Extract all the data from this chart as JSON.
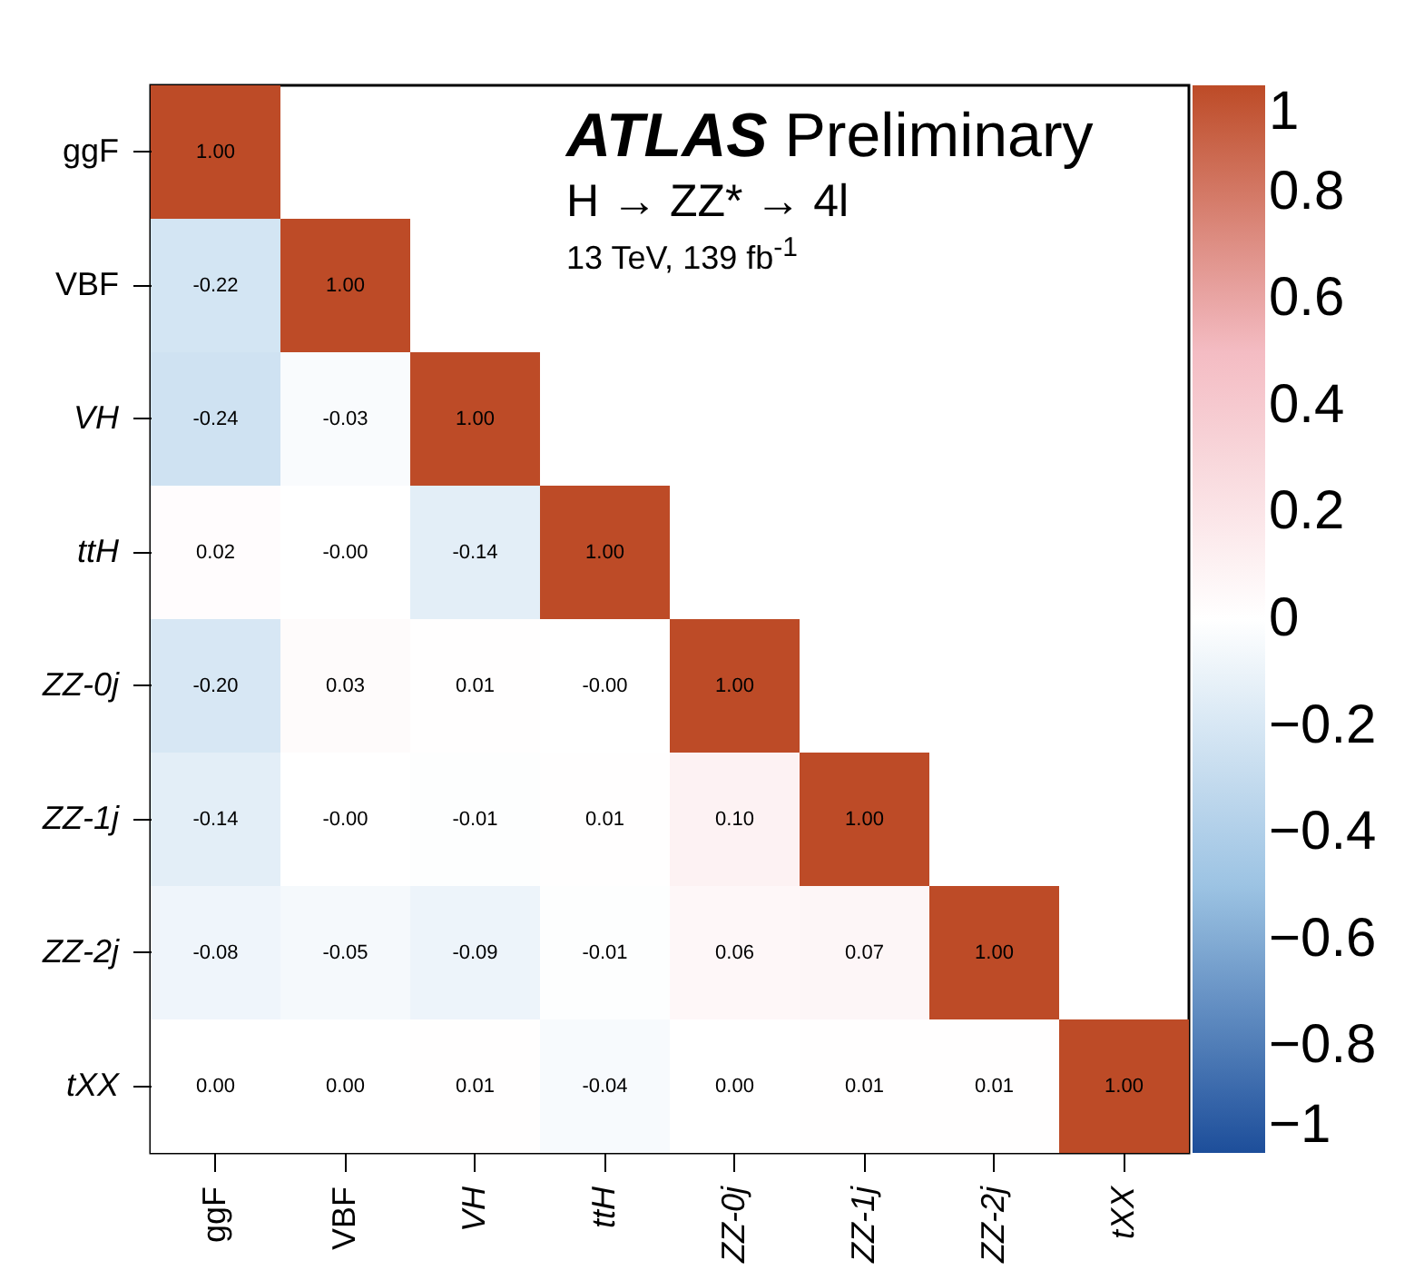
{
  "chart_data": {
    "type": "heatmap",
    "categories": [
      "ggF",
      "VBF",
      "VH",
      "ttH",
      "ZZ-0j",
      "ZZ-1j",
      "ZZ-2j",
      "tXX"
    ],
    "y_categories": [
      "ggF",
      "VBF",
      "VH",
      "ttH",
      "ZZ-0j",
      "ZZ-1j",
      "ZZ-2j",
      "tXX"
    ],
    "cells": [
      [
        1,
        null,
        null,
        null,
        null,
        null,
        null,
        null
      ],
      [
        -0.22,
        1,
        null,
        null,
        null,
        null,
        null,
        null
      ],
      [
        -0.24,
        -0.03,
        1,
        null,
        null,
        null,
        null,
        null
      ],
      [
        0.02,
        0,
        -0.14,
        1,
        null,
        null,
        null,
        null
      ],
      [
        -0.2,
        0.03,
        0.01,
        0,
        1,
        null,
        null,
        null
      ],
      [
        -0.14,
        0,
        -0.01,
        0.01,
        0.1,
        1,
        null,
        null
      ],
      [
        -0.08,
        -0.05,
        -0.09,
        -0.01,
        0.06,
        0.07,
        1,
        null
      ],
      [
        0,
        0,
        0.01,
        -0.04,
        0,
        0.01,
        0.01,
        1
      ]
    ],
    "cell_labels": [
      [
        "1.00",
        null,
        null,
        null,
        null,
        null,
        null,
        null
      ],
      [
        "-0.22",
        "1.00",
        null,
        null,
        null,
        null,
        null,
        null
      ],
      [
        "-0.24",
        "-0.03",
        "1.00",
        null,
        null,
        null,
        null,
        null
      ],
      [
        "0.02",
        "-0.00",
        "-0.14",
        "1.00",
        null,
        null,
        null,
        null
      ],
      [
        "-0.20",
        "0.03",
        "0.01",
        "-0.00",
        "1.00",
        null,
        null,
        null
      ],
      [
        "-0.14",
        "-0.00",
        "-0.01",
        "0.01",
        "0.10",
        "1.00",
        null,
        null
      ],
      [
        "-0.08",
        "-0.05",
        "-0.09",
        "-0.01",
        "0.06",
        "0.07",
        "1.00",
        null
      ],
      [
        "0.00",
        "0.00",
        "0.01",
        "-0.04",
        "0.00",
        "0.01",
        "0.01",
        "1.00"
      ]
    ],
    "clim": [
      -1,
      1
    ],
    "cticks": [
      {
        "value": -1,
        "label": "−1"
      },
      {
        "value": -0.8,
        "label": "−0.8"
      },
      {
        "value": -0.6,
        "label": "−0.6"
      },
      {
        "value": -0.4,
        "label": "−0.4"
      },
      {
        "value": -0.2,
        "label": "−0.2"
      },
      0,
      0.2,
      0.4,
      0.6,
      0.8,
      1
    ],
    "annotations": [
      "ATLAS Preliminary",
      "H → ZZ* → 4l",
      "13 TeV, 139 fb$^{-1}$"
    ]
  }
}
